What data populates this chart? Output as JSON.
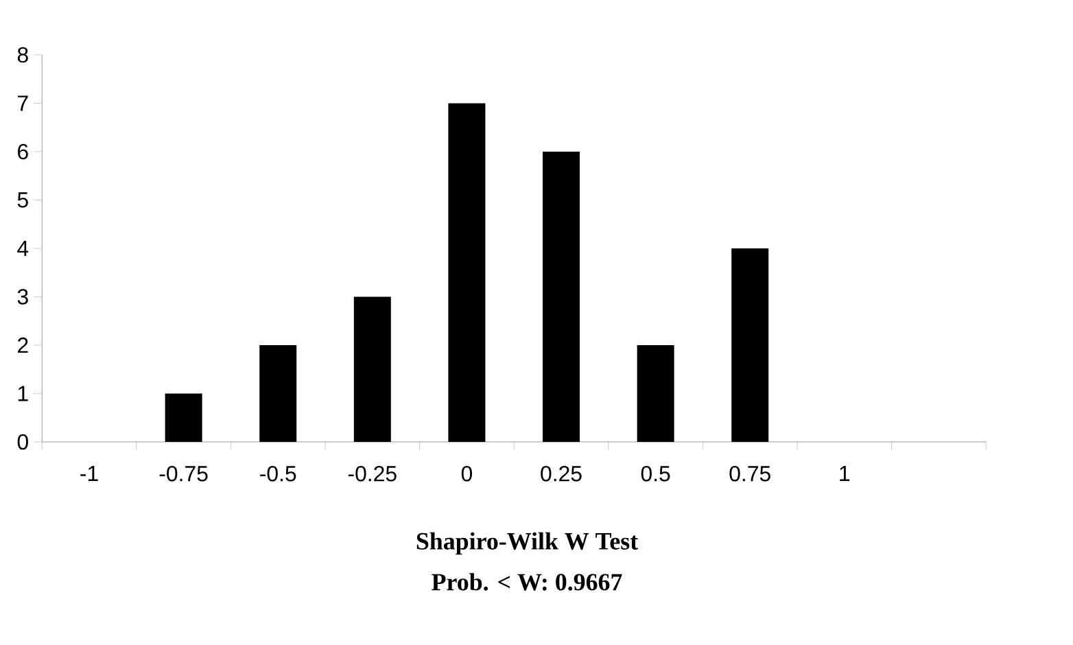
{
  "chart_data": {
    "type": "bar",
    "categories": [
      "-1",
      "-0.75",
      "-0.5",
      "-0.25",
      "0",
      "0.25",
      "0.5",
      "0.75",
      "1",
      null
    ],
    "values": [
      0,
      1,
      2,
      3,
      7,
      6,
      2,
      4,
      0,
      0
    ],
    "color": "#000000",
    "ylim": [
      0,
      8
    ],
    "yticks": [
      0,
      1,
      2,
      3,
      4,
      5,
      6,
      7,
      8
    ],
    "annotations": [
      "Shapiro-Wilk W Test",
      "Prob. < W: 0.9667"
    ]
  }
}
